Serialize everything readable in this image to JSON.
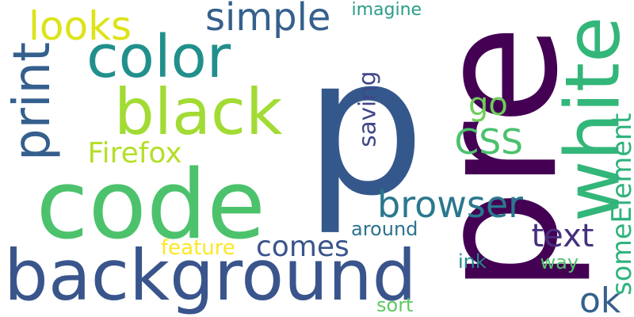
{
  "words": [
    {
      "text": "pre",
      "color": "#440154",
      "rotated": true
    },
    {
      "text": "p",
      "color": "#35588c",
      "rotated": false
    },
    {
      "text": "code",
      "color": "#4cc26c",
      "rotated": false
    },
    {
      "text": "background",
      "color": "#39558c",
      "rotated": false
    },
    {
      "text": "black",
      "color": "#a2db34",
      "rotated": false
    },
    {
      "text": "color",
      "color": "#21908c",
      "rotated": false
    },
    {
      "text": "white",
      "color": "#33b679",
      "rotated": true
    },
    {
      "text": "simple",
      "color": "#35608d",
      "rotated": false
    },
    {
      "text": "looks",
      "color": "#dde318",
      "rotated": false
    },
    {
      "text": "someElement",
      "color": "#2eb37c",
      "rotated": true
    },
    {
      "text": "browser",
      "color": "#2a788e",
      "rotated": false
    },
    {
      "text": "print",
      "color": "#355f8d",
      "rotated": true
    },
    {
      "text": "Firefox",
      "color": "#b5de2b",
      "rotated": false
    },
    {
      "text": "CSS",
      "color": "#4ac16d",
      "rotated": false
    },
    {
      "text": "go",
      "color": "#6ece58",
      "rotated": false
    },
    {
      "text": "text",
      "color": "#46307e",
      "rotated": false
    },
    {
      "text": "comes",
      "color": "#3a548c",
      "rotated": false
    },
    {
      "text": "ok",
      "color": "#35608d",
      "rotated": false
    },
    {
      "text": "saving",
      "color": "#3f4788",
      "rotated": true
    },
    {
      "text": "imagine",
      "color": "#2a9d8a",
      "rotated": false
    },
    {
      "text": "around",
      "color": "#2c728e",
      "rotated": false
    },
    {
      "text": "feature",
      "color": "#fde725",
      "rotated": false
    },
    {
      "text": "ink",
      "color": "#23888e",
      "rotated": false
    },
    {
      "text": "way",
      "color": "#52c569",
      "rotated": false
    },
    {
      "text": "sort",
      "color": "#5ec962",
      "rotated": false
    }
  ]
}
